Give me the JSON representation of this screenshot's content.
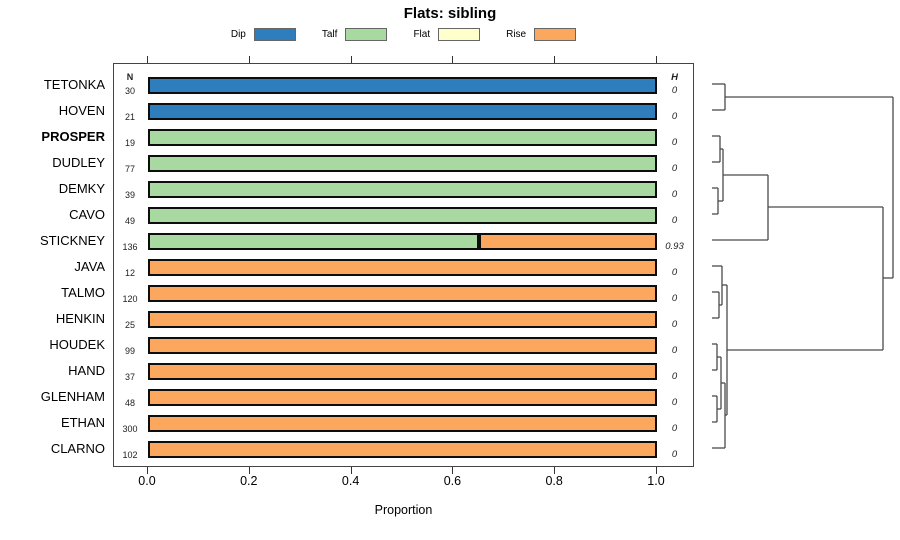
{
  "chart_data": {
    "type": "bar",
    "orientation": "horizontal-stacked",
    "title": "Flats: sibling",
    "xlabel": "Proportion",
    "xlim": [
      0,
      1
    ],
    "grid": false,
    "legend_position": "top",
    "x_ticks": [
      0,
      0.2,
      0.4,
      0.6,
      0.8,
      1.0
    ],
    "x_tick_labels": [
      "0.0",
      "0.2",
      "0.4",
      "0.6",
      "0.8",
      "1.0"
    ],
    "columns": {
      "n_header": "N",
      "h_header": "H"
    },
    "categories": [
      {
        "name": "Dip",
        "color": "#2e7ebd"
      },
      {
        "name": "Talf",
        "color": "#a7d9a0"
      },
      {
        "name": "Flat",
        "color": "#ffffcc"
      },
      {
        "name": "Rise",
        "color": "#fba85e"
      }
    ],
    "rows": [
      {
        "label": "TETONKA",
        "n": 30,
        "h": "0",
        "bold": false,
        "segments": [
          {
            "category": "Dip",
            "value": 1
          }
        ]
      },
      {
        "label": "HOVEN",
        "n": 21,
        "h": "0",
        "bold": false,
        "segments": [
          {
            "category": "Dip",
            "value": 1
          }
        ]
      },
      {
        "label": "PROSPER",
        "n": 19,
        "h": "0",
        "bold": true,
        "segments": [
          {
            "category": "Talf",
            "value": 1
          }
        ]
      },
      {
        "label": "DUDLEY",
        "n": 77,
        "h": "0",
        "bold": false,
        "segments": [
          {
            "category": "Talf",
            "value": 1
          }
        ]
      },
      {
        "label": "DEMKY",
        "n": 39,
        "h": "0",
        "bold": false,
        "segments": [
          {
            "category": "Talf",
            "value": 1
          }
        ]
      },
      {
        "label": "CAVO",
        "n": 49,
        "h": "0",
        "bold": false,
        "segments": [
          {
            "category": "Talf",
            "value": 1
          }
        ]
      },
      {
        "label": "STICKNEY",
        "n": 136,
        "h": "0.93",
        "bold": false,
        "segments": [
          {
            "category": "Talf",
            "value": 0.65
          },
          {
            "category": "Rise",
            "value": 0.35
          }
        ]
      },
      {
        "label": "JAVA",
        "n": 12,
        "h": "0",
        "bold": false,
        "segments": [
          {
            "category": "Rise",
            "value": 1
          }
        ]
      },
      {
        "label": "TALMO",
        "n": 120,
        "h": "0",
        "bold": false,
        "segments": [
          {
            "category": "Rise",
            "value": 1
          }
        ]
      },
      {
        "label": "HENKIN",
        "n": 25,
        "h": "0",
        "bold": false,
        "segments": [
          {
            "category": "Rise",
            "value": 1
          }
        ]
      },
      {
        "label": "HOUDEK",
        "n": 99,
        "h": "0",
        "bold": false,
        "segments": [
          {
            "category": "Rise",
            "value": 1
          }
        ]
      },
      {
        "label": "HAND",
        "n": 37,
        "h": "0",
        "bold": false,
        "segments": [
          {
            "category": "Rise",
            "value": 1
          }
        ]
      },
      {
        "label": "GLENHAM",
        "n": 48,
        "h": "0",
        "bold": false,
        "segments": [
          {
            "category": "Rise",
            "value": 1
          }
        ]
      },
      {
        "label": "ETHAN",
        "n": 300,
        "h": "0",
        "bold": false,
        "segments": [
          {
            "category": "Rise",
            "value": 1
          }
        ]
      },
      {
        "label": "CLARNO",
        "n": 102,
        "h": "0",
        "bold": false,
        "segments": [
          {
            "category": "Rise",
            "value": 1
          }
        ]
      }
    ],
    "dendrogram": {
      "position": "right",
      "clusters": [
        [
          "TETONKA",
          "HOVEN"
        ],
        [
          [
            "PROSPER",
            "DUDLEY"
          ],
          [
            "DEMKY",
            "CAVO"
          ],
          "STICKNEY"
        ],
        [
          [
            "JAVA",
            [
              "TALMO",
              "HENKIN"
            ]
          ],
          [
            [
              [
                "HOUDEK",
                "HAND"
              ],
              [
                "GLENHAM",
                "ETHAN"
              ]
            ],
            "CLARNO"
          ]
        ]
      ],
      "segments": [
        [
          17,
          21,
          30,
          21
        ],
        [
          17,
          47,
          30,
          47
        ],
        [
          30,
          21,
          30,
          47
        ],
        [
          30,
          34,
          198,
          34
        ],
        [
          17,
          73,
          25,
          73
        ],
        [
          17,
          99,
          25,
          99
        ],
        [
          25,
          73,
          25,
          99
        ],
        [
          25,
          86,
          28,
          86
        ],
        [
          17,
          125,
          23,
          125
        ],
        [
          17,
          151,
          23,
          151
        ],
        [
          23,
          125,
          23,
          151
        ],
        [
          23,
          138,
          28,
          138
        ],
        [
          28,
          86,
          28,
          138
        ],
        [
          28,
          112,
          73,
          112
        ],
        [
          17,
          177,
          73,
          177
        ],
        [
          73,
          112,
          73,
          177
        ],
        [
          73,
          144,
          188,
          144
        ],
        [
          17,
          203,
          27,
          203
        ],
        [
          17,
          229,
          24,
          229
        ],
        [
          17,
          255,
          24,
          255
        ],
        [
          24,
          229,
          24,
          255
        ],
        [
          24,
          242,
          27,
          242
        ],
        [
          27,
          203,
          27,
          242
        ],
        [
          27,
          222,
          32,
          222
        ],
        [
          17,
          281,
          22,
          281
        ],
        [
          17,
          307,
          22,
          307
        ],
        [
          22,
          281,
          22,
          307
        ],
        [
          22,
          294,
          26,
          294
        ],
        [
          17,
          333,
          22,
          333
        ],
        [
          17,
          359,
          22,
          359
        ],
        [
          22,
          333,
          22,
          359
        ],
        [
          22,
          346,
          26,
          346
        ],
        [
          26,
          294,
          26,
          346
        ],
        [
          26,
          320,
          30,
          320
        ],
        [
          17,
          385,
          30,
          385
        ],
        [
          30,
          320,
          30,
          385
        ],
        [
          30,
          352,
          32,
          352
        ],
        [
          32,
          222,
          32,
          352
        ],
        [
          32,
          287,
          188,
          287
        ],
        [
          188,
          144,
          188,
          287
        ],
        [
          188,
          215,
          198,
          215
        ],
        [
          198,
          34,
          198,
          215
        ]
      ]
    }
  }
}
